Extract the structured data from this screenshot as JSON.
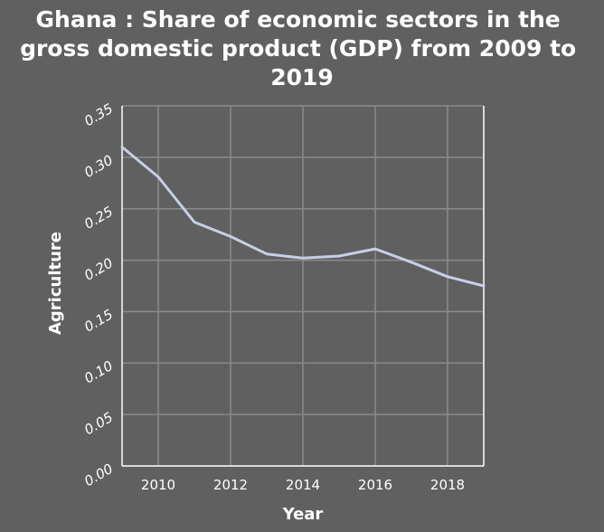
{
  "chart_data": {
    "type": "line",
    "title": "Ghana : Share of economic sectors in the gross domestic product (GDP) from 2009 to 2019",
    "title_lines": [
      "Ghana : Share of economic sectors in the",
      "gross domestic product (GDP) from 2009 to",
      "2019"
    ],
    "xlabel": "Year",
    "ylabel": "Agriculture",
    "xlim": [
      2009,
      2019
    ],
    "ylim": [
      0,
      0.35
    ],
    "xticks": [
      2010,
      2012,
      2014,
      2016,
      2018
    ],
    "yticks": [
      "0.00",
      "0.05",
      "0.10",
      "0.15",
      "0.20",
      "0.25",
      "0.30",
      "0.35"
    ],
    "grid": true,
    "series": [
      {
        "color": "#c8cfe6",
        "x": [
          2009,
          2010,
          2011,
          2012,
          2013,
          2014,
          2015,
          2016,
          2017,
          2018,
          2019
        ],
        "values": [
          0.31,
          0.281,
          0.237,
          0.223,
          0.206,
          0.202,
          0.204,
          0.211,
          0.198,
          0.184,
          0.175
        ]
      }
    ]
  }
}
